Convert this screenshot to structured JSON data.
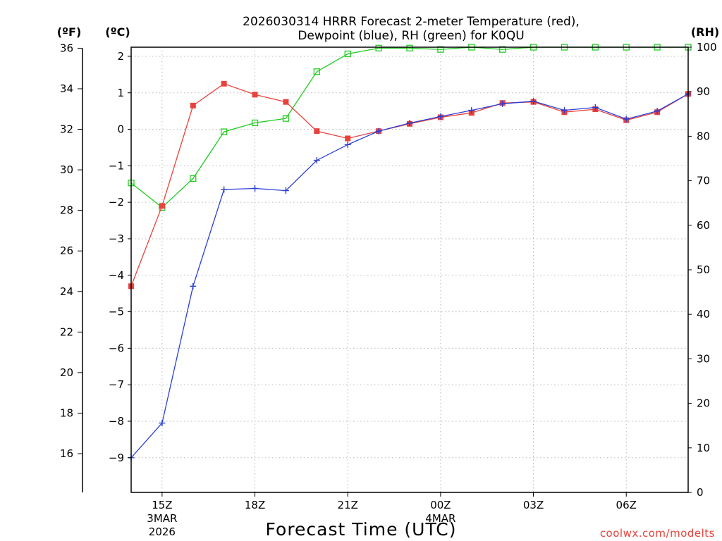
{
  "chart_data": {
    "type": "line",
    "title_line1": "2026030314 HRRR Forecast 2-meter Temperature (red),",
    "title_line2": "Dewpoint (blue), RH (green) for K0QU",
    "xlabel": "Forecast Time (UTC)",
    "credit": "coolwx.com/modelts",
    "units": {
      "fahrenheit": "(ºF)",
      "celsius": "(ºC)",
      "rh": "(RH)"
    },
    "x_hours": [
      14,
      15,
      16,
      17,
      18,
      19,
      20,
      21,
      22,
      23,
      24,
      25,
      26,
      27,
      28,
      29,
      30,
      31,
      32
    ],
    "x_ticks": [
      {
        "hour": 15,
        "label": "15Z",
        "sub1": "3MAR",
        "sub2": "2026"
      },
      {
        "hour": 18,
        "label": "18Z",
        "sub1": "",
        "sub2": ""
      },
      {
        "hour": 21,
        "label": "21Z",
        "sub1": "",
        "sub2": ""
      },
      {
        "hour": 24,
        "label": "00Z",
        "sub1": "4MAR",
        "sub2": ""
      },
      {
        "hour": 27,
        "label": "03Z",
        "sub1": "",
        "sub2": ""
      },
      {
        "hour": 30,
        "label": "06Z",
        "sub1": "",
        "sub2": ""
      }
    ],
    "xlim": [
      14,
      32
    ],
    "celsius_axis": {
      "min": -9.95,
      "max": 2.25,
      "ticks": [
        2,
        1,
        0,
        -1,
        -2,
        -3,
        -4,
        -5,
        -6,
        -7,
        -8,
        -9
      ]
    },
    "fahrenheit_ticks": [
      36,
      34,
      32,
      30,
      28,
      26,
      24,
      22,
      20,
      18,
      16
    ],
    "rh_axis": {
      "min": 0,
      "max": 100,
      "ticks": [
        100,
        90,
        80,
        70,
        60,
        50,
        40,
        30,
        20,
        10,
        0
      ]
    },
    "series": [
      {
        "name": "Temperature",
        "unit": "C",
        "color": "#e8423c",
        "marker": "filled-square",
        "values": [
          -4.3,
          -2.1,
          0.65,
          1.25,
          0.95,
          0.75,
          -0.05,
          -0.25,
          -0.05,
          0.15,
          0.33,
          0.45,
          0.72,
          0.75,
          0.47,
          0.55,
          0.25,
          0.47,
          0.97
        ]
      },
      {
        "name": "Dewpoint",
        "unit": "C",
        "color": "#2b3fd6",
        "marker": "plus",
        "values": [
          -9.0,
          -8.05,
          -4.3,
          -1.65,
          -1.62,
          -1.68,
          -0.85,
          -0.42,
          -0.05,
          0.17,
          0.35,
          0.52,
          0.7,
          0.77,
          0.52,
          0.6,
          0.28,
          0.5,
          0.97
        ]
      },
      {
        "name": "RH",
        "unit": "%",
        "color": "#22cc22",
        "marker": "open-square",
        "values": [
          69.5,
          64,
          70.5,
          81,
          83,
          84,
          94.5,
          98.5,
          99.8,
          99.8,
          99.5,
          100,
          99.5,
          100,
          100,
          100,
          100,
          100,
          100
        ]
      }
    ]
  }
}
